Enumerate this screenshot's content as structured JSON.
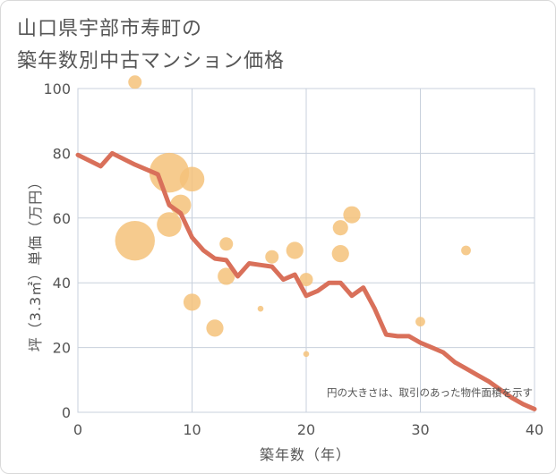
{
  "title": "山口県宇部市寿町の\n築年数別中古マンション価格",
  "chart_data": {
    "type": "scatter",
    "title": "山口県宇部市寿町の築年数別中古マンション価格",
    "xlabel": "築年数（年）",
    "ylabel": "坪（3.3㎡）単価（万円）",
    "xlim": [
      0,
      40
    ],
    "ylim": [
      0,
      100
    ],
    "x_ticks": [
      0,
      10,
      20,
      30,
      40
    ],
    "y_ticks": [
      0,
      20,
      40,
      60,
      80,
      100
    ],
    "grid": true,
    "annotation": "円の大きさは、取引のあった物件面積を示す",
    "colors": {
      "bubble": "#f5c27a",
      "line": "#d9705a",
      "grid": "#c8d0dc"
    },
    "points": [
      {
        "x": 5,
        "y": 102,
        "size": 3
      },
      {
        "x": 5,
        "y": 53,
        "size": 10
      },
      {
        "x": 8,
        "y": 74,
        "size": 10
      },
      {
        "x": 8,
        "y": 58,
        "size": 6
      },
      {
        "x": 9,
        "y": 64,
        "size": 5
      },
      {
        "x": 10,
        "y": 72,
        "size": 6
      },
      {
        "x": 10,
        "y": 34,
        "size": 4
      },
      {
        "x": 12,
        "y": 26,
        "size": 4
      },
      {
        "x": 13,
        "y": 52,
        "size": 3
      },
      {
        "x": 13,
        "y": 42,
        "size": 4
      },
      {
        "x": 16,
        "y": 32,
        "size": 1
      },
      {
        "x": 17,
        "y": 48,
        "size": 3
      },
      {
        "x": 19,
        "y": 50,
        "size": 4
      },
      {
        "x": 20,
        "y": 41,
        "size": 3
      },
      {
        "x": 20,
        "y": 18,
        "size": 1
      },
      {
        "x": 23,
        "y": 57,
        "size": 3.5
      },
      {
        "x": 23,
        "y": 49,
        "size": 4
      },
      {
        "x": 24,
        "y": 61,
        "size": 4
      },
      {
        "x": 30,
        "y": 28,
        "size": 2
      },
      {
        "x": 34,
        "y": 50,
        "size": 2
      }
    ],
    "series": [
      {
        "x": [
          0,
          2,
          3,
          5,
          7,
          8,
          9,
          10,
          11,
          12,
          13,
          14,
          15,
          16,
          17,
          18,
          19,
          20,
          21,
          22,
          23,
          24,
          25,
          26,
          27,
          28,
          29,
          30,
          31,
          32,
          33,
          34,
          35,
          36,
          37,
          38,
          39,
          40
        ],
        "y": [
          79.5,
          76,
          80,
          76.5,
          73.5,
          64,
          61.5,
          54,
          50,
          47.5,
          47,
          42,
          46,
          45.5,
          45,
          41,
          42.5,
          36,
          37.5,
          40,
          40,
          36,
          38.5,
          32,
          24,
          23.5,
          23.5,
          21.5,
          20,
          18.5,
          15.5,
          13.5,
          11.5,
          9.5,
          7,
          4.5,
          2.5,
          1
        ]
      }
    ]
  }
}
